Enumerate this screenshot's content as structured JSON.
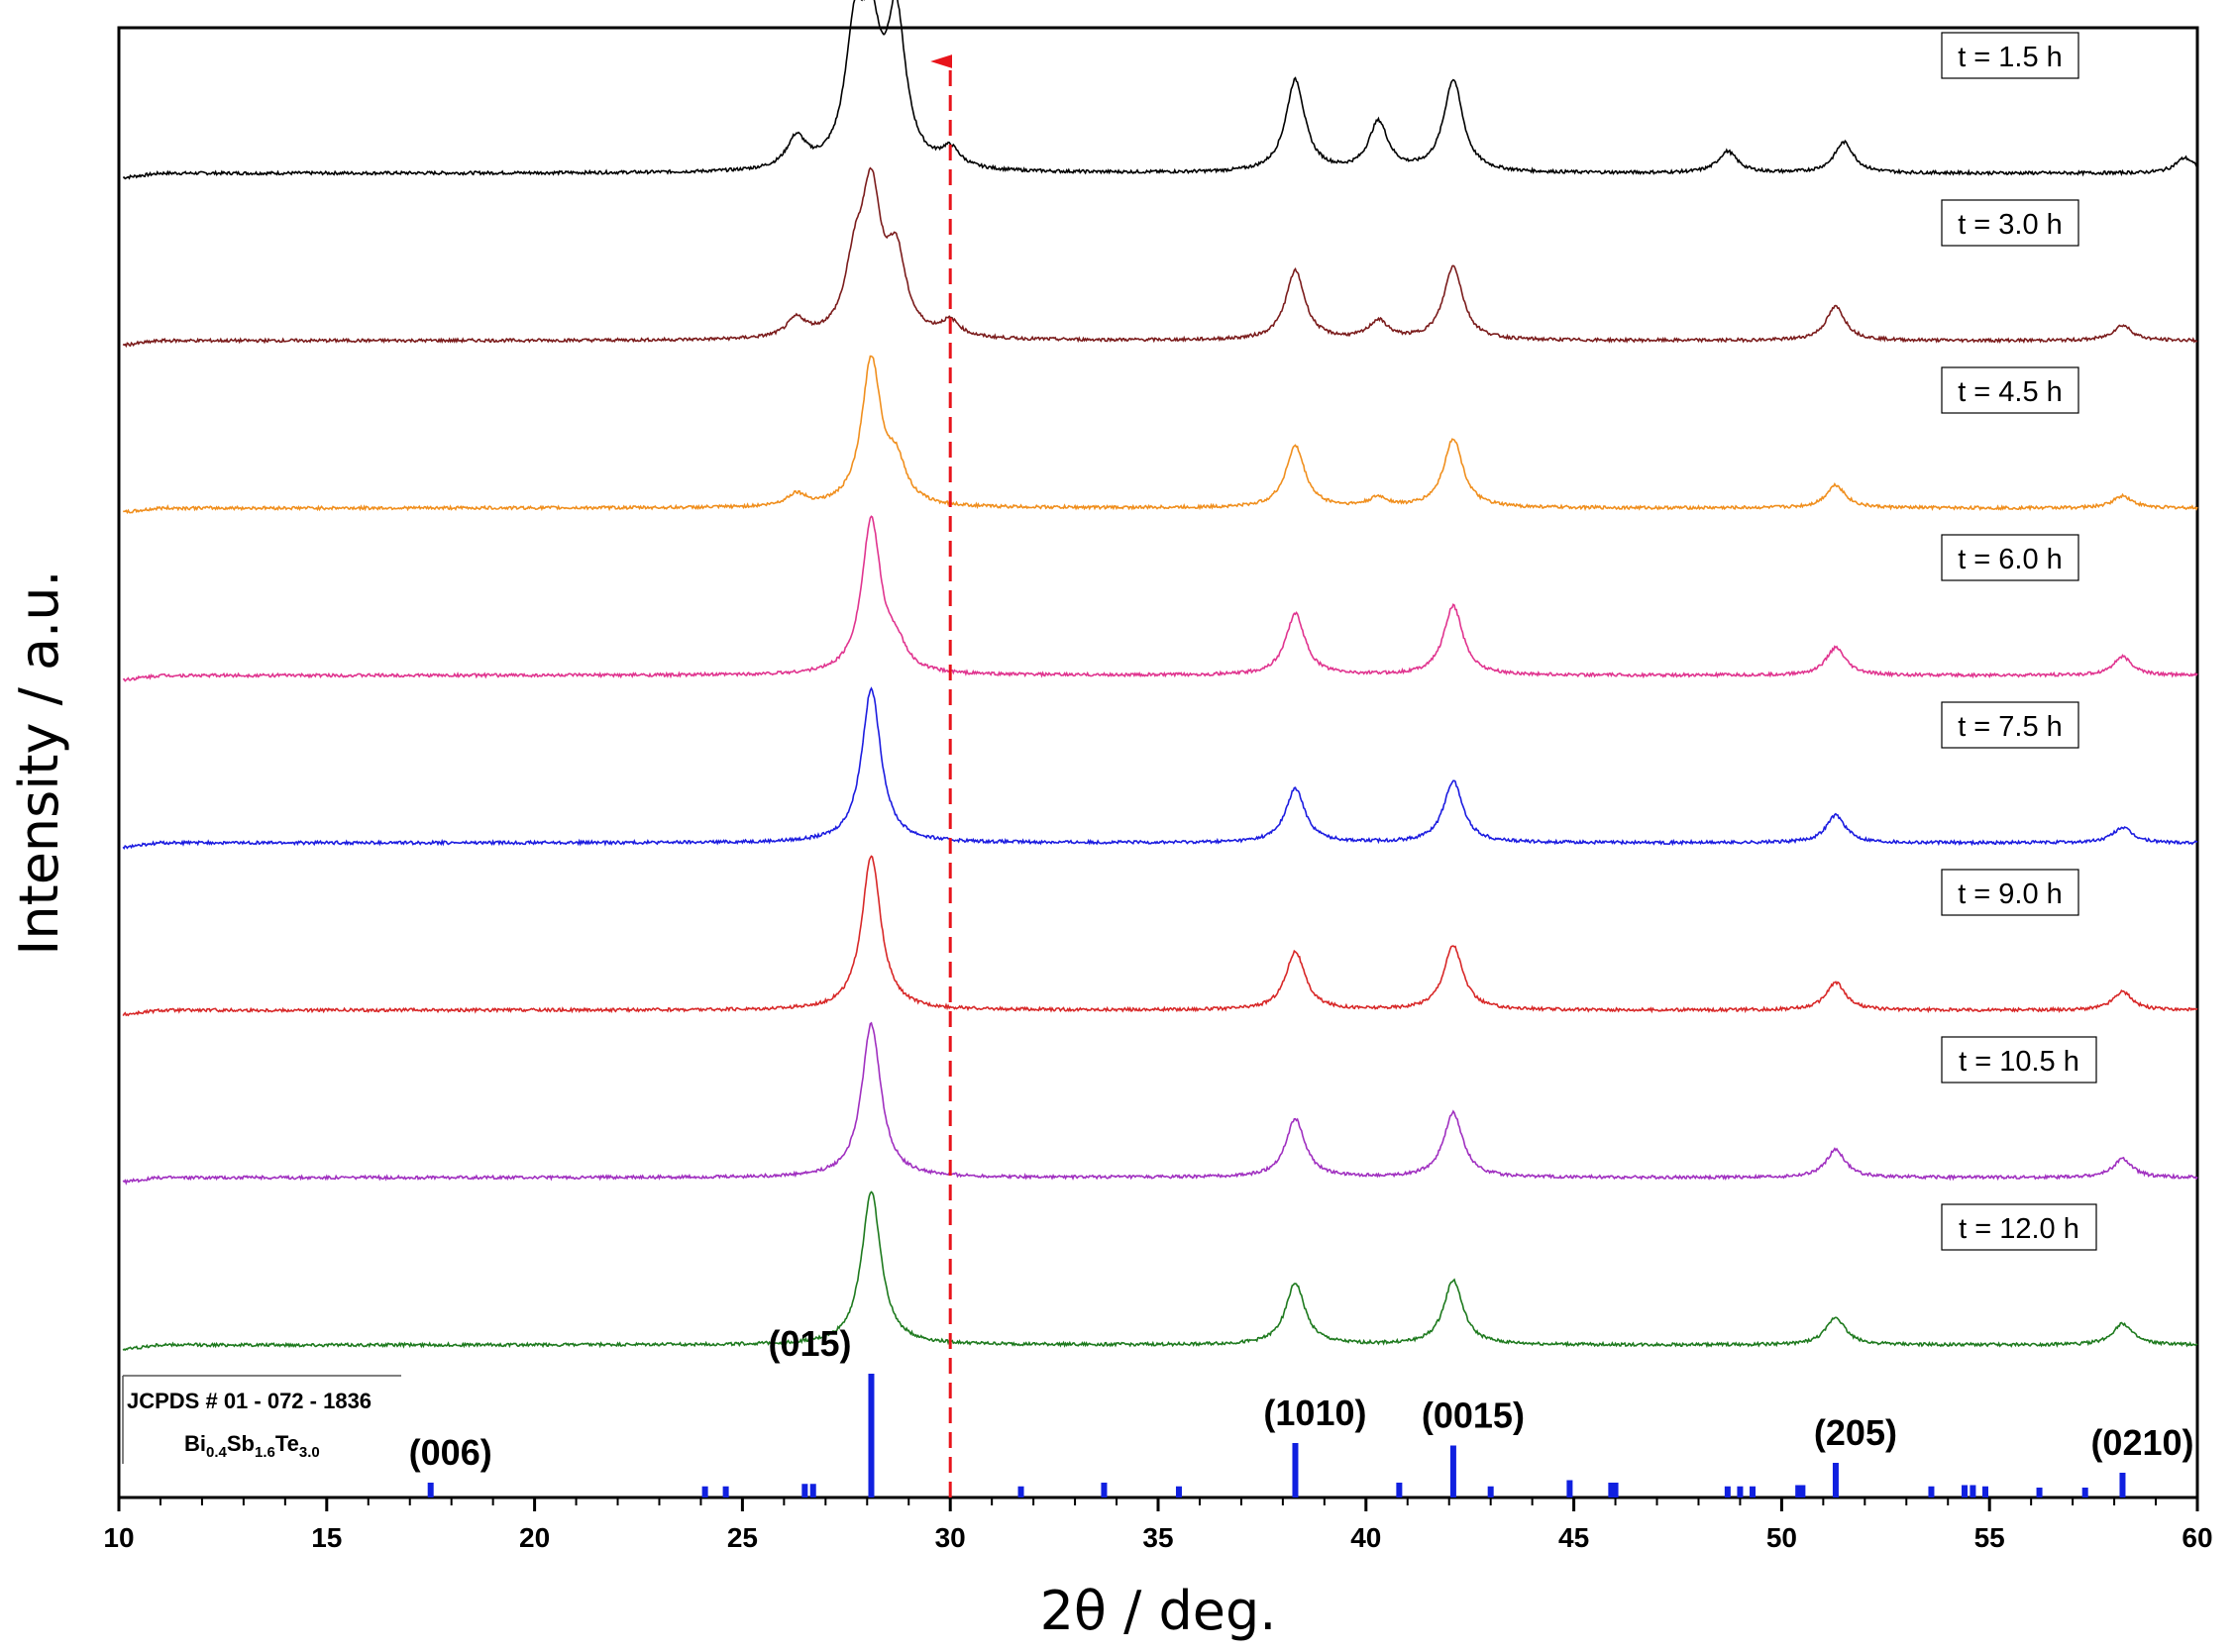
{
  "chart_data": {
    "type": "line",
    "xlabel": "2θ / deg.",
    "ylabel": "Intensity / a.u.",
    "xlim": [
      10,
      60
    ],
    "xticks": [
      10,
      15,
      20,
      25,
      30,
      35,
      40,
      45,
      50,
      55,
      60
    ],
    "marker_line": {
      "x": 30,
      "color": "#e8141b",
      "style": "dashed",
      "arrow": "up"
    },
    "series": [
      {
        "name": "t = 1.5 h",
        "color": "#000000",
        "peaks": [
          [
            26.3,
            20
          ],
          [
            27.7,
            80
          ],
          [
            28.1,
            75
          ],
          [
            28.7,
            95
          ],
          [
            30.0,
            12
          ],
          [
            38.3,
            60
          ],
          [
            40.3,
            32
          ],
          [
            42.1,
            60
          ],
          [
            48.7,
            14
          ],
          [
            51.5,
            20
          ],
          [
            59.7,
            10
          ]
        ]
      },
      {
        "name": "t = 3.0 h",
        "color": "#7b1c1c",
        "peaks": [
          [
            26.3,
            12
          ],
          [
            27.7,
            40
          ],
          [
            28.1,
            90
          ],
          [
            28.7,
            50
          ],
          [
            30.0,
            10
          ],
          [
            38.3,
            45
          ],
          [
            40.3,
            12
          ],
          [
            42.1,
            48
          ],
          [
            51.3,
            22
          ],
          [
            58.2,
            10
          ]
        ]
      },
      {
        "name": "t = 4.5 h",
        "color": "#f08f1e",
        "peaks": [
          [
            26.3,
            8
          ],
          [
            28.1,
            95
          ],
          [
            28.7,
            25
          ],
          [
            38.3,
            40
          ],
          [
            40.3,
            6
          ],
          [
            42.1,
            45
          ],
          [
            51.3,
            15
          ],
          [
            58.2,
            8
          ]
        ]
      },
      {
        "name": "t = 6.0 h",
        "color": "#e0348f",
        "peaks": [
          [
            28.1,
            100
          ],
          [
            28.7,
            15
          ],
          [
            38.3,
            40
          ],
          [
            42.1,
            45
          ],
          [
            51.3,
            18
          ],
          [
            58.2,
            12
          ]
        ]
      },
      {
        "name": "t = 7.5 h",
        "color": "#1c1ce0",
        "peaks": [
          [
            28.1,
            100
          ],
          [
            38.3,
            35
          ],
          [
            42.1,
            40
          ],
          [
            51.3,
            18
          ],
          [
            58.2,
            10
          ]
        ]
      },
      {
        "name": "t = 9.0 h",
        "color": "#d82828",
        "peaks": [
          [
            28.1,
            100
          ],
          [
            38.3,
            38
          ],
          [
            42.1,
            42
          ],
          [
            51.3,
            18
          ],
          [
            58.2,
            12
          ]
        ]
      },
      {
        "name": "t = 10.5 h",
        "color": "#a030c0",
        "peaks": [
          [
            28.1,
            100
          ],
          [
            38.3,
            38
          ],
          [
            42.1,
            42
          ],
          [
            51.3,
            18
          ],
          [
            58.2,
            12
          ]
        ]
      },
      {
        "name": "t = 12.0 h",
        "color": "#1e7a1e",
        "peaks": [
          [
            28.1,
            100
          ],
          [
            38.3,
            40
          ],
          [
            42.1,
            42
          ],
          [
            51.3,
            18
          ],
          [
            58.2,
            14
          ]
        ]
      }
    ],
    "reference": {
      "card": "JCPDS # 01 - 072 - 1836",
      "formula": {
        "el1": "Bi",
        "sub1": "0.4",
        "el2": "Sb",
        "sub2": "1.6",
        "el3": "Te",
        "sub3": "3.0"
      },
      "color": "#1020e0",
      "sticks": [
        [
          17.5,
          12
        ],
        [
          24.1,
          9
        ],
        [
          24.6,
          9
        ],
        [
          26.5,
          11
        ],
        [
          26.7,
          11
        ],
        [
          28.1,
          100
        ],
        [
          31.7,
          9
        ],
        [
          33.7,
          12
        ],
        [
          35.5,
          9
        ],
        [
          38.3,
          44
        ],
        [
          40.8,
          12
        ],
        [
          42.1,
          42
        ],
        [
          43.0,
          9
        ],
        [
          44.9,
          14
        ],
        [
          45.9,
          12
        ],
        [
          46.0,
          12
        ],
        [
          48.7,
          9
        ],
        [
          49.0,
          9
        ],
        [
          49.3,
          9
        ],
        [
          50.4,
          10
        ],
        [
          50.5,
          10
        ],
        [
          51.3,
          28
        ],
        [
          53.6,
          9
        ],
        [
          54.4,
          10
        ],
        [
          54.6,
          10
        ],
        [
          54.9,
          9
        ],
        [
          56.2,
          8
        ],
        [
          57.3,
          8
        ],
        [
          58.2,
          20
        ]
      ],
      "hkl_labels": [
        {
          "text": "(006)",
          "x": 17.5
        },
        {
          "text": "(015)",
          "x": 28.1
        },
        {
          "text": "(1010)",
          "x": 38.3
        },
        {
          "text": "(0015)",
          "x": 42.1
        },
        {
          "text": "(205)",
          "x": 51.3
        },
        {
          "text": "(0210)",
          "x": 58.2
        }
      ]
    }
  }
}
